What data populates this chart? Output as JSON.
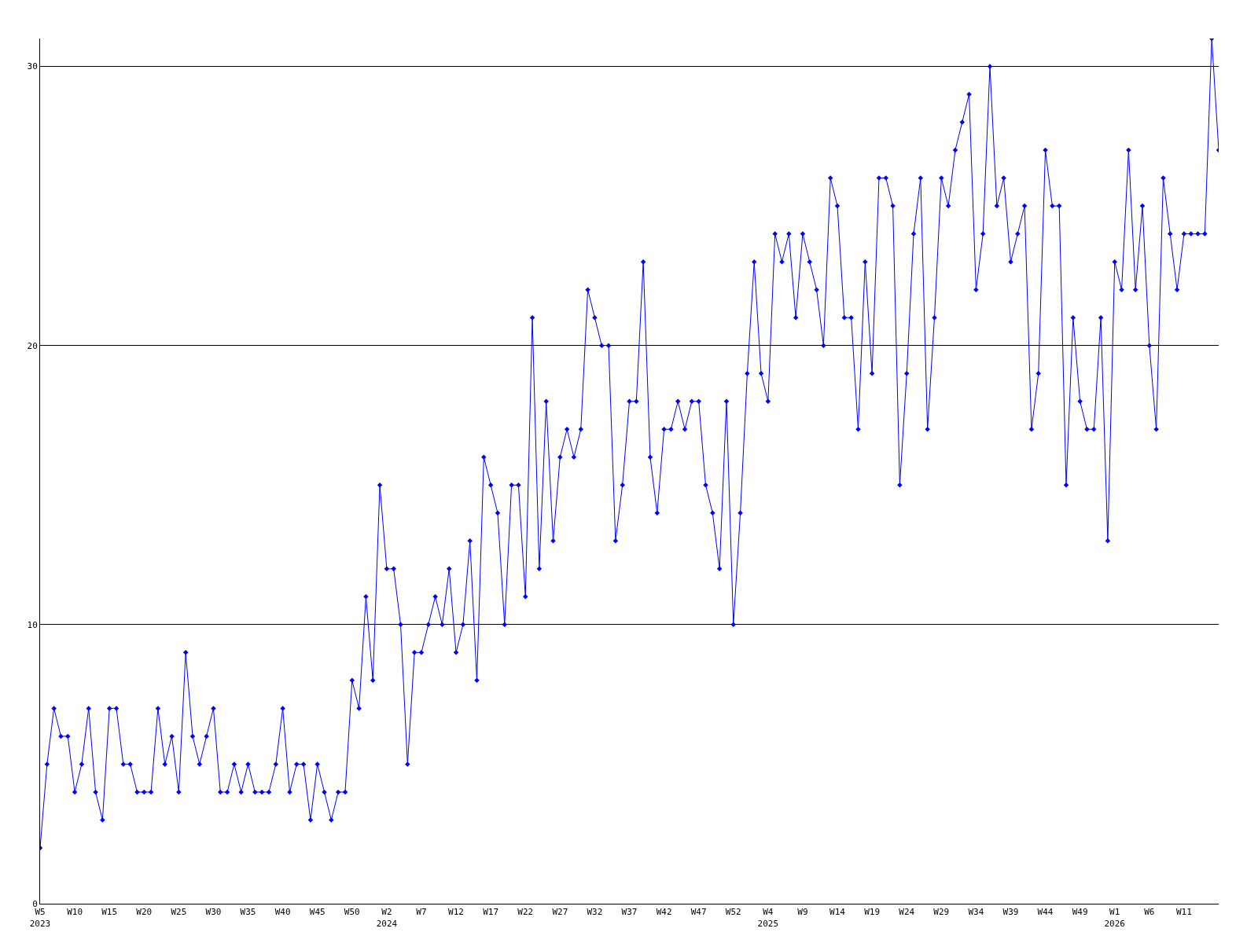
{
  "chart_data": {
    "type": "line",
    "categories": [
      "W5\n2023",
      null,
      null,
      null,
      null,
      "W10",
      null,
      null,
      null,
      null,
      "W15",
      null,
      null,
      null,
      null,
      "W20",
      null,
      null,
      null,
      null,
      "W25",
      null,
      null,
      null,
      null,
      "W30",
      null,
      null,
      null,
      null,
      "W35",
      null,
      null,
      null,
      null,
      "W40",
      null,
      null,
      null,
      null,
      "W45",
      null,
      null,
      null,
      null,
      "W50",
      null,
      null,
      null,
      null,
      "W2\n2024",
      null,
      null,
      null,
      null,
      "W7",
      null,
      null,
      null,
      null,
      "W12",
      null,
      null,
      null,
      null,
      "W17",
      null,
      null,
      null,
      null,
      "W22",
      null,
      null,
      null,
      null,
      "W27",
      null,
      null,
      null,
      null,
      "W32",
      null,
      null,
      null,
      null,
      "W37",
      null,
      null,
      null,
      null,
      "W42",
      null,
      null,
      null,
      null,
      "W47",
      null,
      null,
      null,
      null,
      "W52",
      null,
      null,
      null,
      null,
      "W4\n2025",
      null,
      null,
      null,
      null,
      "W9",
      null,
      null,
      null,
      null,
      "W14",
      null,
      null,
      null,
      null,
      "W19",
      null,
      null,
      null,
      null,
      "W24",
      null,
      null,
      null,
      null,
      "W29",
      null,
      null,
      null,
      null,
      "W34",
      null,
      null,
      null,
      null,
      "W39",
      null,
      null,
      null,
      null,
      "W44",
      null,
      null,
      null,
      null,
      "W49",
      null,
      null,
      null,
      null,
      "W1\n2026",
      null,
      null,
      null,
      null,
      "W6",
      null,
      null,
      null,
      null,
      "W11",
      null,
      null,
      null,
      null,
      null
    ],
    "series": [
      {
        "color": "#0000ff",
        "values": [
          2,
          5,
          7,
          6,
          6,
          4,
          5,
          7,
          4,
          3,
          7,
          7,
          5,
          5,
          4,
          4,
          4,
          7,
          5,
          6,
          4,
          9,
          6,
          5,
          6,
          7,
          4,
          4,
          5,
          4,
          5,
          4,
          4,
          4,
          5,
          7,
          4,
          5,
          5,
          3,
          5,
          4,
          3,
          4,
          4,
          8,
          7,
          11,
          8,
          15,
          12,
          12,
          10,
          5,
          9,
          9,
          10,
          11,
          10,
          12,
          9,
          10,
          13,
          8,
          16,
          15,
          14,
          10,
          15,
          15,
          11,
          21,
          12,
          18,
          13,
          16,
          17,
          16,
          17,
          22,
          21,
          20,
          20,
          13,
          15,
          18,
          18,
          23,
          16,
          14,
          17,
          17,
          18,
          17,
          18,
          18,
          15,
          14,
          12,
          18,
          10,
          14,
          19,
          23,
          19,
          18,
          24,
          23,
          24,
          21,
          24,
          23,
          22,
          20,
          26,
          25,
          21,
          21,
          17,
          23,
          19,
          26,
          26,
          25,
          15,
          19,
          24,
          26,
          17,
          21,
          26,
          25,
          27,
          28,
          29,
          22,
          24,
          30,
          25,
          26,
          23,
          24,
          25,
          17,
          19,
          27,
          25,
          25,
          15,
          21,
          18,
          17,
          17,
          21,
          13,
          23,
          22,
          27,
          22,
          25,
          20,
          17,
          26,
          24,
          22,
          24,
          24,
          24,
          24,
          31,
          27
        ]
      }
    ],
    "ylim": [
      0,
      31
    ],
    "yticks": [
      0,
      10,
      20,
      30
    ],
    "grid": "y",
    "marker": "diamond",
    "line_style": "solid",
    "legend": false
  }
}
